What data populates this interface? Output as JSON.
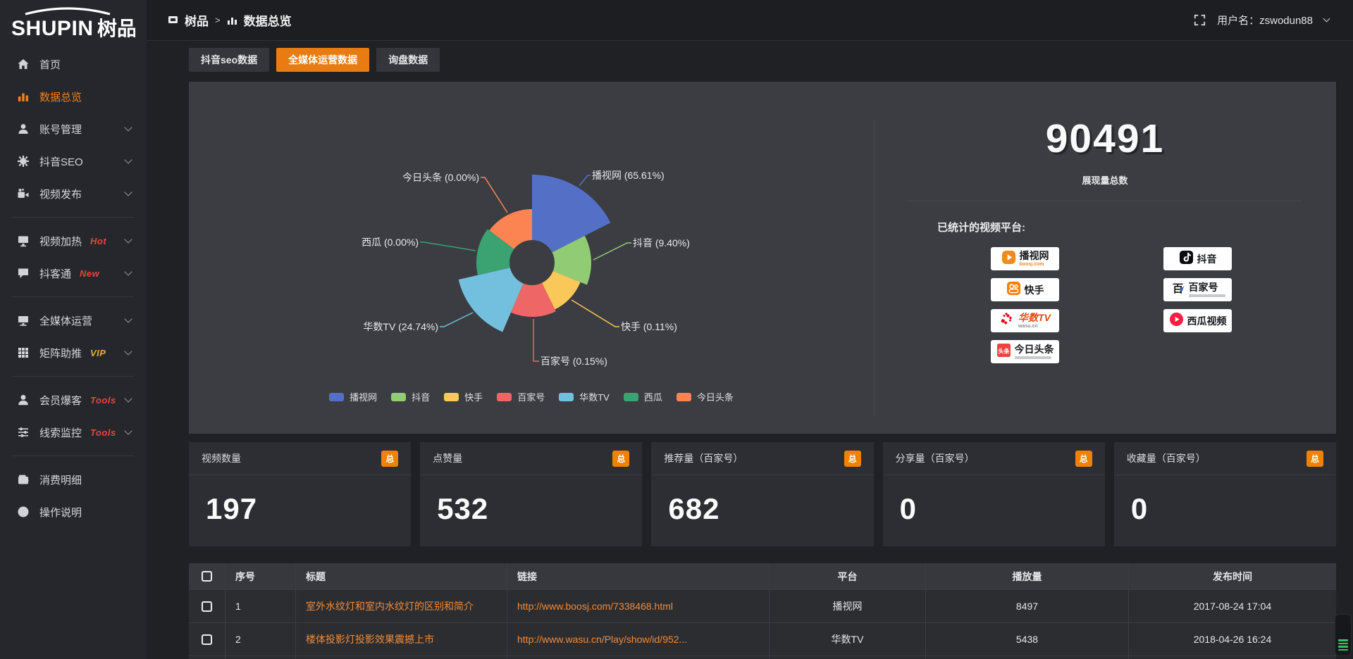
{
  "app": {
    "logo_latin": "SHUPIN",
    "logo_cjk": "树品"
  },
  "topbar": {
    "breadcrumb_root": "树品",
    "breadcrumb_separator": ">",
    "breadcrumb_current": "数据总览",
    "username": "用户名：zswodun88"
  },
  "sidebar": {
    "items": [
      {
        "label": "首页",
        "icon": "home"
      },
      {
        "label": "数据总览",
        "icon": "bar-chart",
        "active": true
      },
      {
        "label": "账号管理",
        "icon": "user",
        "expandable": true
      },
      {
        "label": "抖音SEO",
        "icon": "gear",
        "expandable": true
      },
      {
        "label": "视频发布",
        "icon": "video-publish",
        "expandable": true,
        "divider_after": true
      },
      {
        "label": "视频加热",
        "icon": "screen",
        "badge": "Hot",
        "badge_color": "#e8453c",
        "expandable": true
      },
      {
        "label": "抖客通",
        "icon": "chat",
        "badge": "New",
        "badge_color": "#e8453c",
        "expandable": true,
        "divider_after": true
      },
      {
        "label": "全媒体运营",
        "icon": "monitor",
        "expandable": true
      },
      {
        "label": "矩阵助推",
        "icon": "grid",
        "badge": "VIP",
        "badge_color": "#eaa940",
        "expandable": true,
        "divider_after": true
      },
      {
        "label": "会员爆客",
        "icon": "user-solid",
        "badge": "Tools",
        "badge_color": "#e8453c",
        "expandable": true
      },
      {
        "label": "线索监控",
        "icon": "sliders",
        "badge": "Tools",
        "badge_color": "#e8453c",
        "expandable": true,
        "divider_after": true
      },
      {
        "label": "消费明细",
        "icon": "wallet"
      },
      {
        "label": "操作说明",
        "icon": "question"
      }
    ]
  },
  "tabs": [
    {
      "label": "抖音seo数据",
      "active": false
    },
    {
      "label": "全媒体运营数据",
      "active": true
    },
    {
      "label": "询盘数据",
      "active": false
    }
  ],
  "chart_data": {
    "type": "pie",
    "style": "nightingale-rose-donut",
    "label_format": "name (percent)",
    "legend_position": "bottom",
    "series": [
      {
        "name": "播视网",
        "percent": "65.61%"
      },
      {
        "name": "抖音",
        "percent": "9.40%"
      },
      {
        "name": "快手",
        "percent": "0.11%"
      },
      {
        "name": "百家号",
        "percent": "0.15%"
      },
      {
        "name": "华数TV",
        "percent": "24.74%"
      },
      {
        "name": "西瓜",
        "percent": "0.00%"
      },
      {
        "name": "今日头条",
        "percent": "0.00%"
      }
    ],
    "colors": [
      "#5470c6",
      "#91cc75",
      "#fac858",
      "#ee6666",
      "#73c0de",
      "#3ba272",
      "#fc8452"
    ],
    "legend": [
      "播视网",
      "抖音",
      "快手",
      "百家号",
      "华数TV",
      "西瓜",
      "今日头条"
    ]
  },
  "overview": {
    "total": "90491",
    "total_label": "展现量总数",
    "platforms_label": "已统计的视频平台:",
    "platforms_left": [
      {
        "name": "播视网",
        "sub": "boosj.com",
        "icon": "boosj"
      },
      {
        "name": "快手",
        "icon": "kuaishou"
      },
      {
        "name": "华数TV",
        "sub": "wasu.cn",
        "icon": "wasu"
      },
      {
        "name": "今日头条",
        "icon": "toutiao",
        "subbar": true
      }
    ],
    "platforms_right": [
      {
        "name": "抖音",
        "icon": "douyin"
      },
      {
        "name": "百家号",
        "icon": "baijia",
        "subbar": true
      },
      {
        "name": "西瓜视频",
        "icon": "xigua"
      }
    ]
  },
  "stat_cards": [
    {
      "label": "视频数量",
      "badge": "总",
      "value": "197"
    },
    {
      "label": "点赞量",
      "badge": "总",
      "value": "532"
    },
    {
      "label": "推荐量（百家号）",
      "badge": "总",
      "value": "682"
    },
    {
      "label": "分享量（百家号）",
      "badge": "总",
      "value": "0"
    },
    {
      "label": "收藏量（百家号）",
      "badge": "总",
      "value": "0"
    }
  ],
  "table": {
    "headers": [
      "序号",
      "标题",
      "链接",
      "平台",
      "播放量",
      "发布时间"
    ],
    "rows": [
      {
        "no": "1",
        "title": "室外水纹灯和室内水纹灯的区别和简介",
        "link": "http://www.boosj.com/7338468.html",
        "platform": "播视网",
        "plays": "8497",
        "time": "2017-08-24 17:04"
      },
      {
        "no": "2",
        "title": "楼体投影灯投影效果震撼上市",
        "link": "http://www.wasu.cn/Play/show/id/952...",
        "platform": "华数TV",
        "plays": "5438",
        "time": "2018-04-26 16:24"
      }
    ]
  }
}
